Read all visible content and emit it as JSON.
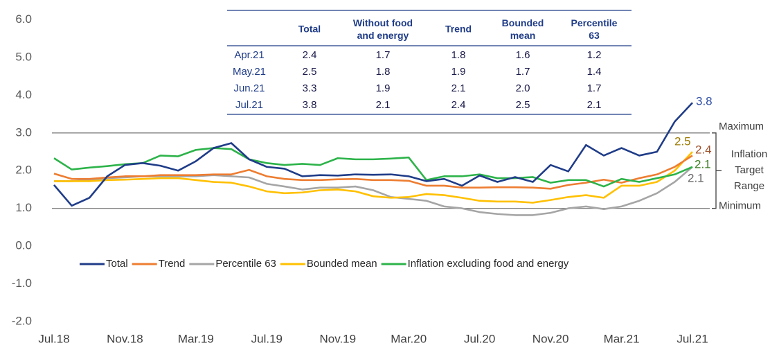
{
  "chart_data": {
    "type": "line",
    "categories": [
      "Jul.18",
      null,
      null,
      null,
      "Nov.18",
      null,
      null,
      null,
      "Mar.19",
      null,
      null,
      null,
      "Jul.19",
      null,
      null,
      null,
      "Nov.19",
      null,
      null,
      null,
      "Mar.20",
      null,
      null,
      null,
      "Jul.20",
      null,
      null,
      null,
      "Nov.20",
      null,
      null,
      null,
      "Mar.21",
      null,
      null,
      null,
      "Jul.21"
    ],
    "ylim": [
      -2,
      6
    ],
    "yticks": [
      {
        "value": -2,
        "label": "-2.0"
      },
      {
        "value": -1,
        "label": "-1.0"
      },
      {
        "value": 0,
        "label": "0.0"
      },
      {
        "value": 1,
        "label": "1.0"
      },
      {
        "value": 2,
        "label": "2.0"
      },
      {
        "value": 3,
        "label": "3.0"
      },
      {
        "value": 4,
        "label": "4.0"
      },
      {
        "value": 5,
        "label": "5.0"
      },
      {
        "value": 6,
        "label": "6.0"
      }
    ],
    "grid": false,
    "legend": "bottom",
    "series": [
      {
        "name": "Total",
        "color": "#1f3c88",
        "values": [
          1.62,
          1.07,
          1.28,
          1.85,
          2.15,
          2.2,
          2.13,
          2.0,
          2.25,
          2.6,
          2.73,
          2.3,
          2.1,
          2.05,
          1.85,
          1.88,
          1.87,
          1.9,
          1.89,
          1.9,
          1.85,
          1.72,
          1.78,
          1.6,
          1.87,
          1.7,
          1.83,
          1.7,
          2.15,
          1.98,
          2.68,
          2.4,
          2.6,
          2.4,
          2.5,
          3.3,
          3.8
        ]
      },
      {
        "name": "Trend",
        "color": "#ed7d31",
        "values": [
          1.92,
          1.78,
          1.78,
          1.82,
          1.85,
          1.85,
          1.88,
          1.88,
          1.88,
          1.9,
          1.9,
          2.02,
          1.85,
          1.78,
          1.75,
          1.75,
          1.77,
          1.78,
          1.75,
          1.75,
          1.73,
          1.6,
          1.6,
          1.55,
          1.55,
          1.56,
          1.56,
          1.55,
          1.52,
          1.62,
          1.68,
          1.76,
          1.68,
          1.8,
          1.9,
          2.1,
          2.4
        ]
      },
      {
        "name": "Percentile 63",
        "color": "#a5a5a5",
        "values": [
          1.72,
          1.72,
          1.75,
          1.8,
          1.82,
          1.85,
          1.85,
          1.85,
          1.85,
          1.88,
          1.85,
          1.82,
          1.65,
          1.58,
          1.5,
          1.55,
          1.55,
          1.58,
          1.48,
          1.3,
          1.25,
          1.2,
          1.05,
          1.0,
          0.9,
          0.85,
          0.82,
          0.82,
          0.88,
          1.0,
          1.05,
          0.98,
          1.05,
          1.2,
          1.4,
          1.7,
          2.1
        ]
      },
      {
        "name": "Bounded mean",
        "color": "#ffc000",
        "values": [
          1.72,
          1.72,
          1.72,
          1.75,
          1.76,
          1.78,
          1.8,
          1.8,
          1.75,
          1.7,
          1.68,
          1.58,
          1.45,
          1.4,
          1.42,
          1.48,
          1.5,
          1.45,
          1.32,
          1.28,
          1.3,
          1.38,
          1.35,
          1.28,
          1.2,
          1.18,
          1.18,
          1.15,
          1.22,
          1.3,
          1.35,
          1.28,
          1.6,
          1.6,
          1.7,
          2.0,
          2.5
        ]
      },
      {
        "name": "Inflation excluding food and energy",
        "color": "#2db34a",
        "values": [
          2.33,
          2.03,
          2.08,
          2.12,
          2.17,
          2.2,
          2.4,
          2.38,
          2.55,
          2.6,
          2.57,
          2.3,
          2.2,
          2.15,
          2.18,
          2.15,
          2.33,
          2.3,
          2.3,
          2.32,
          2.35,
          1.75,
          1.85,
          1.85,
          1.9,
          1.8,
          1.8,
          1.83,
          1.68,
          1.75,
          1.75,
          1.58,
          1.78,
          1.7,
          1.8,
          1.9,
          2.1
        ]
      }
    ],
    "target_range": {
      "max": 3,
      "min": 1,
      "max_label": "Maximum",
      "min_label": "Minimum",
      "label": [
        "Inflation",
        "Target",
        "Range"
      ]
    },
    "table": {
      "columns": [
        "Total",
        "Without food and energy",
        "Trend",
        "Bounded mean",
        "Percentile 63"
      ],
      "rows": [
        [
          "Apr.21",
          "2.4",
          "1.7",
          "1.8",
          "1.6",
          "1.2"
        ],
        [
          "May.21",
          "2.5",
          "1.8",
          "1.9",
          "1.7",
          "1.4"
        ],
        [
          "Jun.21",
          "3.3",
          "1.9",
          "2.1",
          "2.0",
          "1.7"
        ],
        [
          "Jul.21",
          "3.8",
          "2.1",
          "2.4",
          "2.5",
          "2.1"
        ]
      ]
    }
  }
}
